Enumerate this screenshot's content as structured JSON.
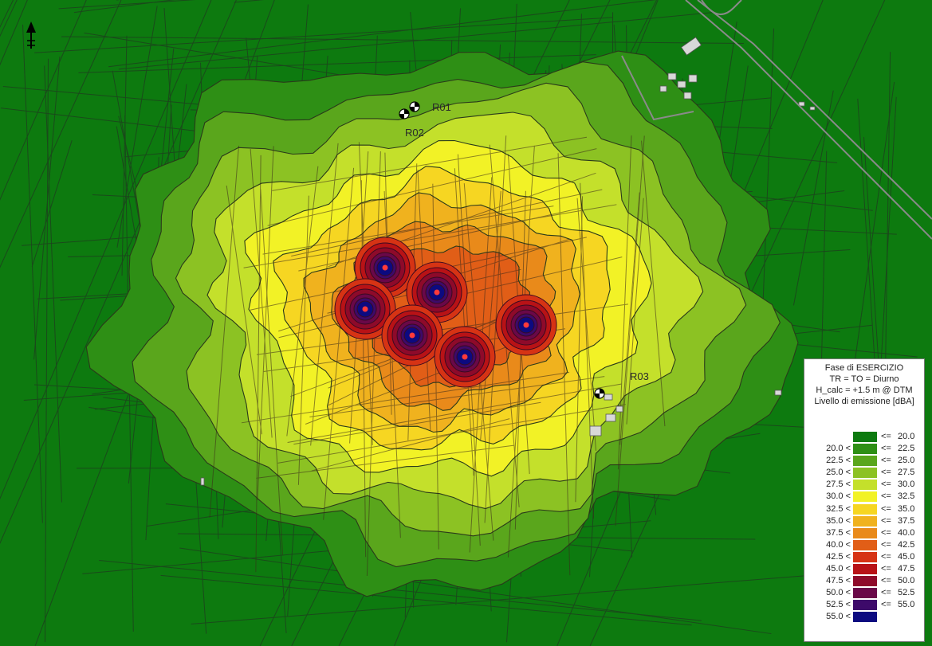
{
  "legend": {
    "title_lines": [
      "Fase di ESERCIZIO",
      "TR = TO = Diurno",
      "H_calc = +1.5 m @ DTM",
      "Livello di emissione [dBA]"
    ],
    "rows": [
      {
        "lower": "",
        "op": "<=",
        "upper": "20.0",
        "color": "#0d7a0f"
      },
      {
        "lower": "20.0 <",
        "op": "<=",
        "upper": "22.5",
        "color": "#2e8f15"
      },
      {
        "lower": "22.5 <",
        "op": "<=",
        "upper": "25.0",
        "color": "#5aa61c"
      },
      {
        "lower": "25.0 <",
        "op": "<=",
        "upper": "27.5",
        "color": "#8cc223"
      },
      {
        "lower": "27.5 <",
        "op": "<=",
        "upper": "30.0",
        "color": "#c4e02b"
      },
      {
        "lower": "30.0 <",
        "op": "<=",
        "upper": "32.5",
        "color": "#f2f226"
      },
      {
        "lower": "32.5 <",
        "op": "<=",
        "upper": "35.0",
        "color": "#f6d622"
      },
      {
        "lower": "35.0 <",
        "op": "<=",
        "upper": "37.5",
        "color": "#f0b21e"
      },
      {
        "lower": "37.5 <",
        "op": "<=",
        "upper": "40.0",
        "color": "#e98a1a"
      },
      {
        "lower": "40.0 <",
        "op": "<=",
        "upper": "42.5",
        "color": "#e15e17"
      },
      {
        "lower": "42.5 <",
        "op": "<=",
        "upper": "45.0",
        "color": "#d63314"
      },
      {
        "lower": "45.0 <",
        "op": "<=",
        "upper": "47.5",
        "color": "#b81216"
      },
      {
        "lower": "47.5 <",
        "op": "<=",
        "upper": "50.0",
        "color": "#8e0a2a"
      },
      {
        "lower": "50.0 <",
        "op": "<=",
        "upper": "52.5",
        "color": "#6a0848"
      },
      {
        "lower": "52.5 <",
        "op": "<=",
        "upper": "55.0",
        "color": "#3d0a6a"
      },
      {
        "lower": "55.0 <",
        "op": "",
        "upper": "",
        "color": "#0c0a80"
      }
    ]
  },
  "receptors": [
    {
      "id": "R01"
    },
    {
      "id": "R02"
    },
    {
      "id": "R03"
    }
  ],
  "colors": {
    "background_green": "#0d7a0f",
    "line_dark": "#2a3a2a",
    "source_center": "#1a1060"
  }
}
